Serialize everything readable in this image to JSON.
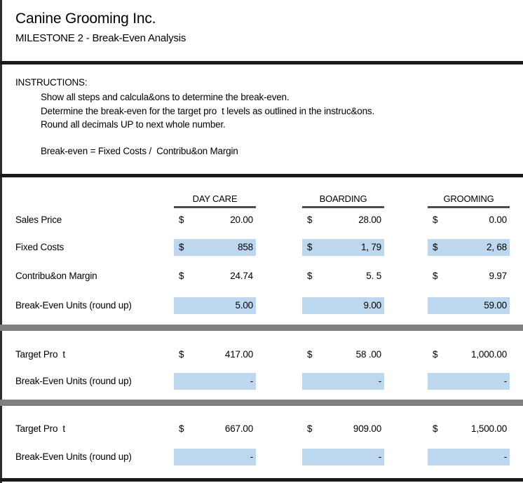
{
  "title": {
    "company": "Canine Grooming Inc.",
    "subtitle": "MILESTONE 2 - Break-Even Analysis"
  },
  "instructions": {
    "heading": "INSTRUCTIONS:",
    "line1": "Show all steps and calcula&ons to determine the break-even.",
    "line2": "Determine the break-even for the target pro  t levels as outlined in the instruc&ons.",
    "line3": "Round all decimals UP to next whole number.",
    "formula": "Break-even = Fixed Costs /  Contribu&on Margin"
  },
  "columns": {
    "c1": "DAY CARE",
    "c2": "BOARDING",
    "c3": "GROOMING"
  },
  "currency": "$",
  "rows": {
    "sales_price": {
      "label": "Sales Price",
      "v1": "20.00",
      "v2": "28.00",
      "v3": "0.00"
    },
    "fixed_costs": {
      "label": "Fixed Costs",
      "v1": "858",
      "v2": "1, 79",
      "v3": "2, 68"
    },
    "contribution_margin": {
      "label": "Contribu&on Margin",
      "v1": "24.74",
      "v2": "5. 5",
      "v3": "9.97"
    },
    "break_even_units_1": {
      "label": "Break-Even Units (round up)",
      "v1": "5.00",
      "v2": "9.00",
      "v3": "59.00"
    },
    "target_profit_1": {
      "label": "Target Pro  t",
      "v1": "417.00",
      "v2": "58 .00",
      "v3": "1,000.00"
    },
    "break_even_units_2": {
      "label": "Break-Even Units (round up)",
      "v1": "-",
      "v2": "-",
      "v3": "-"
    },
    "target_profit_2": {
      "label": "Target Pro  t",
      "v1": "667.00",
      "v2": "909.00",
      "v3": "1,500.00"
    },
    "break_even_units_3": {
      "label": "Break-Even Units (round up)",
      "v1": "-",
      "v2": "-",
      "v3": "-"
    }
  },
  "colors": {
    "highlight": "#BDD7EE",
    "divider_gray": "#7F7F7F",
    "divider_black": "#1A1A1A"
  }
}
